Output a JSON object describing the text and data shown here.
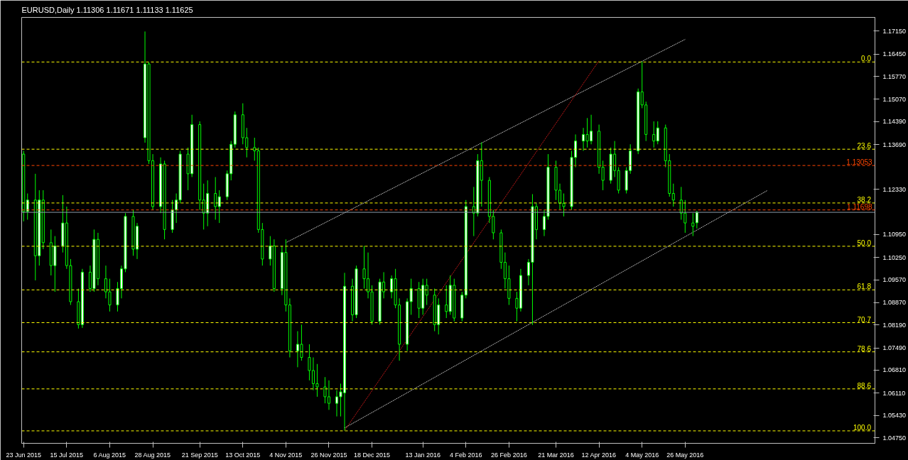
{
  "chart_data": {
    "type": "candlestick",
    "title": "EURUSD,Daily  1.11306 1.11671 1.11133 1.11625",
    "color": "#00ff00",
    "x": [
      "2015-06-23",
      "2015-06-25",
      "2015-06-29",
      "2015-07-01",
      "2015-07-03",
      "2015-07-07",
      "2015-07-09",
      "2015-07-13",
      "2015-07-15",
      "2015-07-17",
      "2015-07-21",
      "2015-07-23",
      "2015-07-27",
      "2015-07-29",
      "2015-07-31",
      "2015-08-04",
      "2015-08-06",
      "2015-08-10",
      "2015-08-12",
      "2015-08-14",
      "2015-08-18",
      "2015-08-20",
      "2015-08-24",
      "2015-08-26",
      "2015-08-28",
      "2015-09-01",
      "2015-09-03",
      "2015-09-07",
      "2015-09-09",
      "2015-09-11",
      "2015-09-15",
      "2015-09-17",
      "2015-09-21",
      "2015-09-23",
      "2015-09-25",
      "2015-09-29",
      "2015-10-01",
      "2015-10-05",
      "2015-10-07",
      "2015-10-09",
      "2015-10-13",
      "2015-10-15",
      "2015-10-19",
      "2015-10-21",
      "2015-10-23",
      "2015-10-27",
      "2015-10-29",
      "2015-11-02",
      "2015-11-04",
      "2015-11-06",
      "2015-11-10",
      "2015-11-12",
      "2015-11-16",
      "2015-11-18",
      "2015-11-20",
      "2015-11-24",
      "2015-11-26",
      "2015-11-30",
      "2015-12-02",
      "2015-12-04",
      "2015-12-08",
      "2015-12-10",
      "2015-12-14",
      "2015-12-16",
      "2015-12-18",
      "2015-12-22",
      "2015-12-24",
      "2015-12-28",
      "2015-12-30",
      "2016-01-01",
      "2016-01-05",
      "2016-01-07",
      "2016-01-11",
      "2016-01-13",
      "2016-01-15",
      "2016-01-19",
      "2016-01-21",
      "2016-01-25",
      "2016-01-27",
      "2016-01-29",
      "2016-02-02",
      "2016-02-04",
      "2016-02-08",
      "2016-02-10",
      "2016-02-12",
      "2016-02-16",
      "2016-02-18",
      "2016-02-22",
      "2016-02-24",
      "2016-02-26",
      "2016-03-01",
      "2016-03-03",
      "2016-03-07",
      "2016-03-09",
      "2016-03-11",
      "2016-03-15",
      "2016-03-17",
      "2016-03-21",
      "2016-03-23",
      "2016-03-25",
      "2016-03-29",
      "2016-03-31",
      "2016-04-04",
      "2016-04-06",
      "2016-04-08",
      "2016-04-12",
      "2016-04-14",
      "2016-04-18",
      "2016-04-20",
      "2016-04-22",
      "2016-04-26",
      "2016-04-28",
      "2016-05-02",
      "2016-05-04",
      "2016-05-06",
      "2016-05-10",
      "2016-05-12",
      "2016-05-16",
      "2016-05-18",
      "2016-05-20",
      "2016-05-24",
      "2016-05-26",
      "2016-05-30",
      "2016-06-01"
    ],
    "ohlc": [
      [
        1.134,
        1.135,
        1.1135,
        1.1165
      ],
      [
        1.1165,
        1.122,
        1.114,
        1.12
      ],
      [
        1.12,
        1.128,
        1.0955,
        1.103
      ],
      [
        1.103,
        1.123,
        1.1,
        1.12
      ],
      [
        1.12,
        1.123,
        1.105,
        1.107
      ],
      [
        1.107,
        1.111,
        1.097,
        1.1
      ],
      [
        1.1,
        1.109,
        1.092,
        1.106
      ],
      [
        1.106,
        1.1215,
        1.104,
        1.113
      ],
      [
        1.113,
        1.118,
        1.099,
        1.1
      ],
      [
        1.1,
        1.102,
        1.088,
        1.089
      ],
      [
        1.089,
        1.093,
        1.0808,
        1.082
      ],
      [
        1.082,
        1.099,
        1.081,
        1.098
      ],
      [
        1.098,
        1.1,
        1.092,
        1.093
      ],
      [
        1.093,
        1.111,
        1.092,
        1.108
      ],
      [
        1.108,
        1.11,
        1.094,
        1.096
      ],
      [
        1.096,
        1.1,
        1.09,
        1.092
      ],
      [
        1.092,
        1.096,
        1.086,
        1.088
      ],
      [
        1.088,
        1.095,
        1.086,
        1.093
      ],
      [
        1.093,
        1.1,
        1.09,
        1.099
      ],
      [
        1.099,
        1.116,
        1.098,
        1.115
      ],
      [
        1.115,
        1.117,
        1.103,
        1.105
      ],
      [
        1.105,
        1.113,
        1.102,
        1.112
      ],
      [
        1.139,
        1.1714,
        1.1375,
        1.1615
      ],
      [
        1.1615,
        1.162,
        1.131,
        1.132
      ],
      [
        1.132,
        1.134,
        1.117,
        1.118
      ],
      [
        1.118,
        1.133,
        1.116,
        1.131
      ],
      [
        1.131,
        1.132,
        1.108,
        1.111
      ],
      [
        1.111,
        1.12,
        1.11,
        1.117
      ],
      [
        1.117,
        1.122,
        1.113,
        1.12
      ],
      [
        1.12,
        1.135,
        1.119,
        1.134
      ],
      [
        1.134,
        1.136,
        1.123,
        1.128
      ],
      [
        1.128,
        1.146,
        1.127,
        1.143
      ],
      [
        1.143,
        1.144,
        1.117,
        1.12
      ],
      [
        1.12,
        1.125,
        1.111,
        1.116
      ],
      [
        1.116,
        1.126,
        1.112,
        1.122
      ],
      [
        1.122,
        1.127,
        1.114,
        1.118
      ],
      [
        1.118,
        1.123,
        1.113,
        1.121
      ],
      [
        1.121,
        1.129,
        1.12,
        1.128
      ],
      [
        1.128,
        1.138,
        1.126,
        1.137
      ],
      [
        1.137,
        1.147,
        1.136,
        1.146
      ],
      [
        1.146,
        1.1495,
        1.137,
        1.139
      ],
      [
        1.139,
        1.142,
        1.133,
        1.136
      ],
      [
        1.136,
        1.139,
        1.132,
        1.135
      ],
      [
        1.135,
        1.136,
        1.11,
        1.111
      ],
      [
        1.111,
        1.113,
        1.1,
        1.102
      ],
      [
        1.102,
        1.109,
        1.1,
        1.106
      ],
      [
        1.106,
        1.108,
        1.092,
        1.093
      ],
      [
        1.093,
        1.106,
        1.091,
        1.104
      ],
      [
        1.104,
        1.108,
        1.086,
        1.088
      ],
      [
        1.088,
        1.09,
        1.072,
        1.074
      ],
      [
        1.074,
        1.08,
        1.069,
        1.076
      ],
      [
        1.076,
        1.082,
        1.071,
        1.072
      ],
      [
        1.072,
        1.076,
        1.065,
        1.068
      ],
      [
        1.068,
        1.072,
        1.062,
        1.064
      ],
      [
        1.064,
        1.07,
        1.06,
        1.063
      ],
      [
        1.063,
        1.066,
        1.058,
        1.06
      ],
      [
        1.06,
        1.065,
        1.056,
        1.058
      ],
      [
        1.058,
        1.062,
        1.054,
        1.06
      ],
      [
        1.06,
        1.064,
        1.054,
        1.0615
      ],
      [
        1.0612,
        1.0978,
        1.0497,
        1.0937
      ],
      [
        1.0937,
        1.096,
        1.083,
        1.085
      ],
      [
        1.085,
        1.1,
        1.084,
        1.099
      ],
      [
        1.099,
        1.106,
        1.093,
        1.096
      ],
      [
        1.096,
        1.104,
        1.09,
        1.092
      ],
      [
        1.092,
        1.094,
        1.082,
        1.083
      ],
      [
        1.083,
        1.096,
        1.082,
        1.095
      ],
      [
        1.095,
        1.098,
        1.09,
        1.092
      ],
      [
        1.092,
        1.097,
        1.09,
        1.096
      ],
      [
        1.096,
        1.099,
        1.087,
        1.088
      ],
      [
        1.088,
        1.09,
        1.071,
        1.076
      ],
      [
        1.076,
        1.09,
        1.074,
        1.089
      ],
      [
        1.089,
        1.096,
        1.085,
        1.093
      ],
      [
        1.093,
        1.095,
        1.084,
        1.087
      ],
      [
        1.087,
        1.096,
        1.085,
        1.094
      ],
      [
        1.094,
        1.096,
        1.088,
        1.091
      ],
      [
        1.091,
        1.093,
        1.08,
        1.082
      ],
      [
        1.082,
        1.09,
        1.079,
        1.088
      ],
      [
        1.088,
        1.094,
        1.084,
        1.086
      ],
      [
        1.086,
        1.097,
        1.085,
        1.094
      ],
      [
        1.094,
        1.096,
        1.083,
        1.084
      ],
      [
        1.084,
        1.092,
        1.083,
        1.091
      ],
      [
        1.091,
        1.12,
        1.09,
        1.118
      ],
      [
        1.118,
        1.124,
        1.109,
        1.116
      ],
      [
        1.116,
        1.134,
        1.115,
        1.132
      ],
      [
        1.132,
        1.1376,
        1.118,
        1.126
      ],
      [
        1.126,
        1.127,
        1.113,
        1.115
      ],
      [
        1.115,
        1.117,
        1.108,
        1.11
      ],
      [
        1.11,
        1.111,
        1.099,
        1.101
      ],
      [
        1.101,
        1.104,
        1.093,
        1.096
      ],
      [
        1.096,
        1.1,
        1.088,
        1.09
      ],
      [
        1.09,
        1.092,
        1.083,
        1.087
      ],
      [
        1.087,
        1.099,
        1.086,
        1.097
      ],
      [
        1.097,
        1.102,
        1.094,
        1.101
      ],
      [
        1.101,
        1.1218,
        1.0819,
        1.118
      ],
      [
        1.118,
        1.119,
        1.108,
        1.111
      ],
      [
        1.111,
        1.117,
        1.109,
        1.115
      ],
      [
        1.115,
        1.134,
        1.114,
        1.13
      ],
      [
        1.13,
        1.132,
        1.12,
        1.123
      ],
      [
        1.123,
        1.125,
        1.117,
        1.119
      ],
      [
        1.119,
        1.122,
        1.115,
        1.118
      ],
      [
        1.118,
        1.135,
        1.117,
        1.133
      ],
      [
        1.133,
        1.14,
        1.13,
        1.138
      ],
      [
        1.138,
        1.142,
        1.135,
        1.14
      ],
      [
        1.14,
        1.145,
        1.136,
        1.138
      ],
      [
        1.138,
        1.146,
        1.137,
        1.141
      ],
      [
        1.141,
        1.143,
        1.128,
        1.13
      ],
      [
        1.13,
        1.132,
        1.123,
        1.126
      ],
      [
        1.126,
        1.136,
        1.125,
        1.134
      ],
      [
        1.134,
        1.138,
        1.127,
        1.129
      ],
      [
        1.129,
        1.13,
        1.122,
        1.123
      ],
      [
        1.123,
        1.13,
        1.122,
        1.129
      ],
      [
        1.129,
        1.137,
        1.128,
        1.135
      ],
      [
        1.135,
        1.154,
        1.134,
        1.153
      ],
      [
        1.153,
        1.1622,
        1.148,
        1.149
      ],
      [
        1.149,
        1.15,
        1.138,
        1.14
      ],
      [
        1.14,
        1.144,
        1.136,
        1.138
      ],
      [
        1.138,
        1.144,
        1.137,
        1.142
      ],
      [
        1.142,
        1.143,
        1.13,
        1.132
      ],
      [
        1.132,
        1.134,
        1.121,
        1.122
      ],
      [
        1.122,
        1.125,
        1.118,
        1.12
      ],
      [
        1.12,
        1.124,
        1.114,
        1.116
      ],
      [
        1.116,
        1.12,
        1.11,
        1.113
      ],
      [
        1.113,
        1.116,
        1.109,
        1.112
      ],
      [
        1.11306,
        1.11671,
        1.11133,
        1.11625
      ]
    ],
    "series": [
      {
        "type": "line",
        "x": [
          "2015-11-04",
          "2016-05-26"
        ],
        "values": [
          1.107,
          1.169
        ],
        "color": "#ffffff",
        "line_style": "dotted"
      },
      {
        "type": "line",
        "x": [
          "2015-12-04",
          "2016-07-07"
        ],
        "values": [
          1.0505,
          1.1229
        ],
        "color": "#ffffff",
        "line_style": "dotted"
      },
      {
        "type": "line",
        "x": [
          "2015-12-04",
          "2016-04-12"
        ],
        "values": [
          1.0497,
          1.1625
        ],
        "color": "#ff2020",
        "line_style": "dotted"
      }
    ],
    "ref_lines": [
      {
        "axis": "y",
        "value": 1.1621,
        "label": null,
        "color": "#ffff00",
        "line_style": "dashed"
      },
      {
        "axis": "y",
        "value": 1.1355,
        "label": null,
        "color": "#ffff00",
        "line_style": "dashed"
      },
      {
        "axis": "y",
        "value": 1.1191,
        "label": null,
        "color": "#ffff00",
        "line_style": "dashed"
      },
      {
        "axis": "y",
        "value": 1.1059,
        "label": null,
        "color": "#ffff00",
        "line_style": "dashed"
      },
      {
        "axis": "y",
        "value": 1.0926,
        "label": null,
        "color": "#ffff00",
        "line_style": "dashed"
      },
      {
        "axis": "y",
        "value": 1.0826,
        "label": null,
        "color": "#ffff00",
        "line_style": "dashed"
      },
      {
        "axis": "y",
        "value": 1.0737,
        "label": null,
        "color": "#ffff00",
        "line_style": "dashed"
      },
      {
        "axis": "y",
        "value": 1.0624,
        "label": null,
        "color": "#ffff00",
        "line_style": "dashed"
      },
      {
        "axis": "y",
        "value": 1.0496,
        "label": null,
        "color": "#ffff00",
        "line_style": "dashed"
      },
      {
        "axis": "y",
        "value": 1.13053,
        "label": "1.13053",
        "color": "#ff4500",
        "line_style": "dashed"
      },
      {
        "axis": "y",
        "value": 1.11698,
        "label": "1.11698",
        "color": "#ff4500",
        "line_style": "dashed"
      },
      {
        "axis": "y",
        "value": 1.11625,
        "label": null,
        "color": "#8a9aaa",
        "line_style": "solid"
      }
    ],
    "xlim": [
      "2015-06-22",
      "2016-08-31"
    ],
    "xticks": [
      {
        "value": "2015-06-23",
        "label": "23 Jun 2015"
      },
      {
        "value": "2015-07-15",
        "label": "15 Jul 2015"
      },
      {
        "value": "2015-08-06",
        "label": "6 Aug 2015"
      },
      {
        "value": "2015-08-28",
        "label": "28 Aug 2015"
      },
      {
        "value": "2015-09-21",
        "label": "21 Sep 2015"
      },
      {
        "value": "2015-10-13",
        "label": "13 Oct 2015"
      },
      {
        "value": "2015-11-04",
        "label": "4 Nov 2015"
      },
      {
        "value": "2015-11-26",
        "label": "26 Nov 2015"
      },
      {
        "value": "2015-12-18",
        "label": "18 Dec 2015"
      },
      {
        "value": "2016-01-13",
        "label": "13 Jan 2016"
      },
      {
        "value": "2016-02-04",
        "label": "4 Feb 2016"
      },
      {
        "value": "2016-02-26",
        "label": "26 Feb 2016"
      },
      {
        "value": "2016-03-21",
        "label": "21 Mar 2016"
      },
      {
        "value": "2016-04-12",
        "label": "12 Apr 2016"
      },
      {
        "value": "2016-05-04",
        "label": "4 May 2016"
      },
      {
        "value": "2016-05-26",
        "label": "26 May 2016"
      }
    ],
    "ylim": [
      1.0458,
      1.1757
    ],
    "yticks": [
      {
        "value": 1.0475,
        "label": "1.04750"
      },
      {
        "value": 1.0543,
        "label": "1.05430"
      },
      {
        "value": 1.0611,
        "label": "1.06110"
      },
      {
        "value": 1.0681,
        "label": "1.06810"
      },
      {
        "value": 1.0749,
        "label": "1.07490"
      },
      {
        "value": 1.0819,
        "label": "1.08190"
      },
      {
        "value": 1.0887,
        "label": "1.08870"
      },
      {
        "value": 1.0957,
        "label": "1.09570"
      },
      {
        "value": 1.1025,
        "label": "1.10250"
      },
      {
        "value": 1.1095,
        "label": "1.10950"
      },
      {
        "value": 1.1233,
        "label": "1.12330"
      },
      {
        "value": 1.1369,
        "label": "1.13690"
      },
      {
        "value": 1.1439,
        "label": "1.14390"
      },
      {
        "value": 1.1507,
        "label": "1.15070"
      },
      {
        "value": 1.1577,
        "label": "1.15770"
      },
      {
        "value": 1.1645,
        "label": "1.16450"
      },
      {
        "value": 1.1715,
        "label": "1.17150"
      }
    ],
    "annotations": [
      {
        "text": "0.0",
        "x": "2016-08-29",
        "y": 1.1621
      },
      {
        "text": "23.6",
        "x": "2016-08-29",
        "y": 1.1355
      },
      {
        "text": "38.2",
        "x": "2016-08-29",
        "y": 1.1191
      },
      {
        "text": "50.0",
        "x": "2016-08-29",
        "y": 1.1059
      },
      {
        "text": "61.8",
        "x": "2016-08-29",
        "y": 1.0926
      },
      {
        "text": "70.7",
        "x": "2016-08-29",
        "y": 1.0826
      },
      {
        "text": "78.6",
        "x": "2016-08-29",
        "y": 1.0737
      },
      {
        "text": "88.6",
        "x": "2016-08-29",
        "y": 1.0624
      },
      {
        "text": "100.0",
        "x": "2016-08-29",
        "y": 1.0496
      }
    ],
    "grid": false
  }
}
